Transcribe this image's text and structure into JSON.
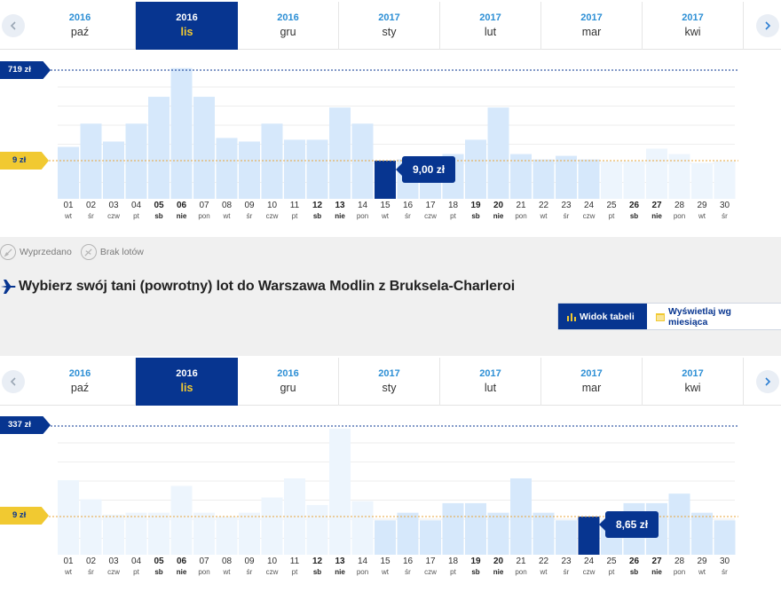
{
  "legend": {
    "sold_out": "Wyprzedano",
    "no_flights": "Brak lotów"
  },
  "section2_title": "Wybierz swój tani (powrotny) lot do Warszawa Modlin z Bruksela-Charleroi",
  "view_toggle": {
    "table": "Widok tabeli",
    "month": "Wyświetlaj wg miesiąca"
  },
  "months": [
    {
      "year": "2016",
      "name": "paź"
    },
    {
      "year": "2016",
      "name": "lis"
    },
    {
      "year": "2016",
      "name": "gru"
    },
    {
      "year": "2017",
      "name": "sty"
    },
    {
      "year": "2017",
      "name": "lut"
    },
    {
      "year": "2017",
      "name": "mar"
    },
    {
      "year": "2017",
      "name": "kwi"
    }
  ],
  "days": [
    {
      "n": "01",
      "w": "wt"
    },
    {
      "n": "02",
      "w": "śr"
    },
    {
      "n": "03",
      "w": "czw"
    },
    {
      "n": "04",
      "w": "pt"
    },
    {
      "n": "05",
      "w": "sb"
    },
    {
      "n": "06",
      "w": "nie"
    },
    {
      "n": "07",
      "w": "pon"
    },
    {
      "n": "08",
      "w": "wt"
    },
    {
      "n": "09",
      "w": "śr"
    },
    {
      "n": "10",
      "w": "czw"
    },
    {
      "n": "11",
      "w": "pt"
    },
    {
      "n": "12",
      "w": "sb"
    },
    {
      "n": "13",
      "w": "nie"
    },
    {
      "n": "14",
      "w": "pon"
    },
    {
      "n": "15",
      "w": "wt"
    },
    {
      "n": "16",
      "w": "śr"
    },
    {
      "n": "17",
      "w": "czw"
    },
    {
      "n": "18",
      "w": "pt"
    },
    {
      "n": "19",
      "w": "sb"
    },
    {
      "n": "20",
      "w": "nie"
    },
    {
      "n": "21",
      "w": "pon"
    },
    {
      "n": "22",
      "w": "wt"
    },
    {
      "n": "23",
      "w": "śr"
    },
    {
      "n": "24",
      "w": "czw"
    },
    {
      "n": "25",
      "w": "pt"
    },
    {
      "n": "26",
      "w": "sb"
    },
    {
      "n": "27",
      "w": "nie"
    },
    {
      "n": "28",
      "w": "pon"
    },
    {
      "n": "29",
      "w": "wt"
    },
    {
      "n": "30",
      "w": "śr"
    }
  ],
  "colors": {
    "navy": "#073590",
    "yellow": "#f1c931",
    "bar": "#d6e8fb",
    "bar_faded": "#edf5fd",
    "blue_link": "#2d8fd5"
  },
  "chart_data": [
    {
      "type": "bar",
      "active_month": "lis",
      "max_label": "719 zł",
      "min_label": "9 zł",
      "ylim": [
        0,
        719
      ],
      "max_value": 719,
      "min_value": 9,
      "selected_day": "15",
      "selected_price": "9,00 zł",
      "values": [
        290,
        420,
        320,
        420,
        570,
        730,
        570,
        340,
        320,
        420,
        330,
        330,
        510,
        420,
        220,
        220,
        230,
        250,
        330,
        510,
        250,
        220,
        240,
        220,
        210,
        210,
        280,
        250,
        200,
        210
      ],
      "faded_from": 25
    },
    {
      "type": "bar",
      "active_month": "lis",
      "max_label": "337 zł",
      "min_label": "9 zł",
      "ylim": [
        0,
        337
      ],
      "max_value": 337,
      "min_value": 9,
      "selected_day": "24",
      "selected_price": "8,65 zł",
      "values": [
        195,
        145,
        105,
        110,
        110,
        180,
        110,
        100,
        110,
        150,
        200,
        130,
        330,
        140,
        90,
        110,
        90,
        135,
        135,
        110,
        200,
        110,
        90,
        110,
        90,
        135,
        135,
        160,
        110,
        90
      ],
      "faded_to": 14
    }
  ]
}
